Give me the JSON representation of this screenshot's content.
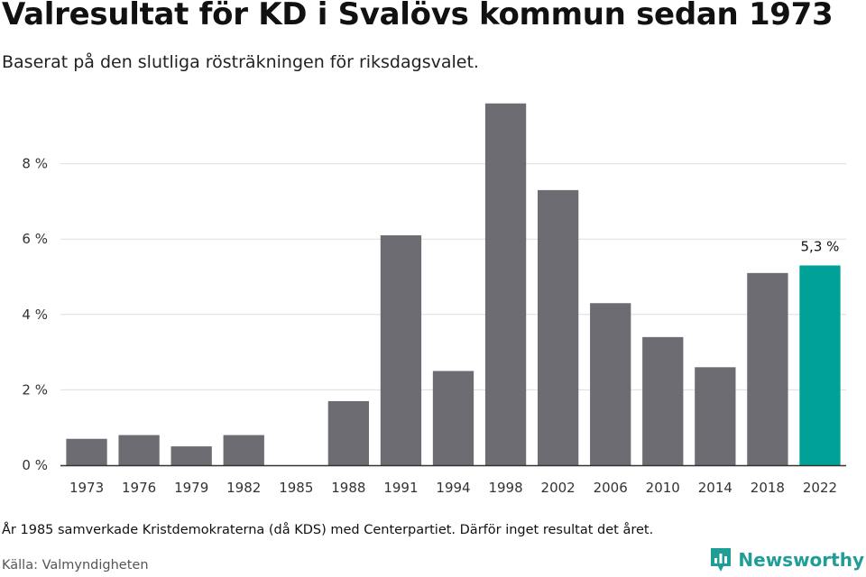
{
  "header": {
    "title": "Valresultat för KD i Svalövs kommun sedan 1973",
    "subtitle": "Baserat på den slutliga rösträkningen för riksdagsvalet."
  },
  "chart_data": {
    "type": "bar",
    "categories": [
      "1973",
      "1976",
      "1979",
      "1982",
      "1985",
      "1988",
      "1991",
      "1994",
      "1998",
      "2002",
      "2006",
      "2010",
      "2014",
      "2018",
      "2022"
    ],
    "values": [
      0.7,
      0.8,
      0.5,
      0.8,
      null,
      1.7,
      6.1,
      2.5,
      9.6,
      7.3,
      4.3,
      3.4,
      2.6,
      5.1,
      5.3
    ],
    "ylim": [
      0,
      10
    ],
    "yticks": [
      0,
      2,
      4,
      6,
      8
    ],
    "ytick_labels": [
      "0 %",
      "2 %",
      "4 %",
      "6 %",
      "8 %"
    ],
    "grid": true,
    "bar_color": "#6d6c72",
    "highlight_color": "#00a297",
    "highlight_index": 14,
    "annotations": [
      {
        "category": "2022",
        "label": "5,3 %"
      }
    ]
  },
  "footer": {
    "note": "År 1985 samverkade Kristdemokraterna (då KDS) med Centerpartiet. Därför inget resultat det året.",
    "source": "Källa: Valmyndigheten",
    "brand": "Newsworthy",
    "brand_icon": "newsworthy-logo-icon",
    "brand_color": "#1e9e96"
  }
}
